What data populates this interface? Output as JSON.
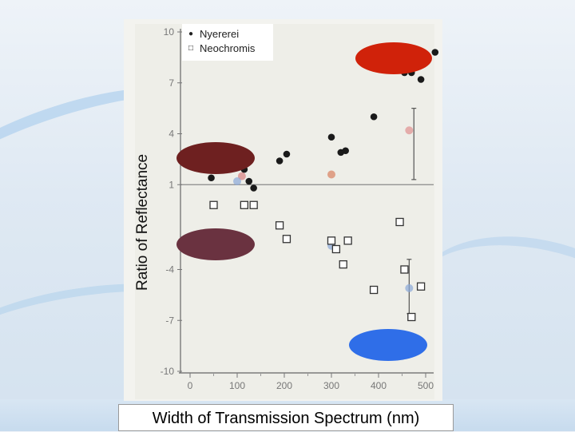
{
  "chart_data": {
    "type": "scatter",
    "xlabel": "Width of Transmission Spectrum (nm)",
    "ylabel": "Ratio of Reflectance",
    "xlim": [
      -20,
      510
    ],
    "ylim": [
      -10,
      10
    ],
    "xticks": [
      0,
      100,
      200,
      300,
      400,
      500
    ],
    "yticks": [
      10,
      7,
      4,
      1,
      -4,
      -7,
      -10
    ],
    "reference_line_y": 1,
    "legend_position": "top-left",
    "series": [
      {
        "name": "Nyererei",
        "marker": "filled-circle",
        "color": "#1a1a1a",
        "x": [
          45,
          115,
          125,
          135,
          190,
          205,
          300,
          320,
          330,
          390,
          455,
          470,
          490,
          520
        ],
        "y": [
          1.4,
          1.9,
          1.2,
          0.8,
          2.4,
          2.8,
          3.8,
          2.9,
          3.0,
          5.0,
          7.6,
          7.6,
          7.2,
          8.8
        ]
      },
      {
        "name": "Neochromis",
        "marker": "open-square",
        "color": "#333333",
        "x": [
          50,
          115,
          135,
          190,
          205,
          300,
          310,
          325,
          335,
          390,
          445,
          455,
          470,
          490
        ],
        "y": [
          -0.2,
          -0.2,
          -0.2,
          -1.4,
          -2.2,
          -2.3,
          -2.8,
          -3.7,
          -2.3,
          -5.2,
          -1.2,
          -4.0,
          -6.8,
          -5.0
        ]
      }
    ],
    "error_bars": [
      {
        "x": 475,
        "y": 3.4,
        "low": 1.3,
        "high": 5.5,
        "color": "#555555"
      },
      {
        "x": 465,
        "y": -5.0,
        "low": -6.6,
        "high": -3.4,
        "color": "#555555"
      }
    ],
    "highlighted_points": [
      {
        "x": 110,
        "y": 1.5,
        "color": "#d98080"
      },
      {
        "x": 300,
        "y": 1.6,
        "color": "#d98060"
      },
      {
        "x": 465,
        "y": 4.2,
        "color": "#e09090"
      },
      {
        "x": 100,
        "y": 1.2,
        "color": "#8aa8d8"
      },
      {
        "x": 300,
        "y": -2.6,
        "color": "#8aa8d8"
      },
      {
        "x": 465,
        "y": -5.1,
        "color": "#8aa8d8"
      }
    ],
    "color_markers": [
      {
        "name": "red-fish-marker",
        "color": "#d0220a"
      },
      {
        "name": "dark-red-fish-marker",
        "color": "#6e2020"
      },
      {
        "name": "dark-purple-fish-marker",
        "color": "#6a3240"
      },
      {
        "name": "blue-fish-marker",
        "color": "#2f6ee8"
      }
    ]
  }
}
